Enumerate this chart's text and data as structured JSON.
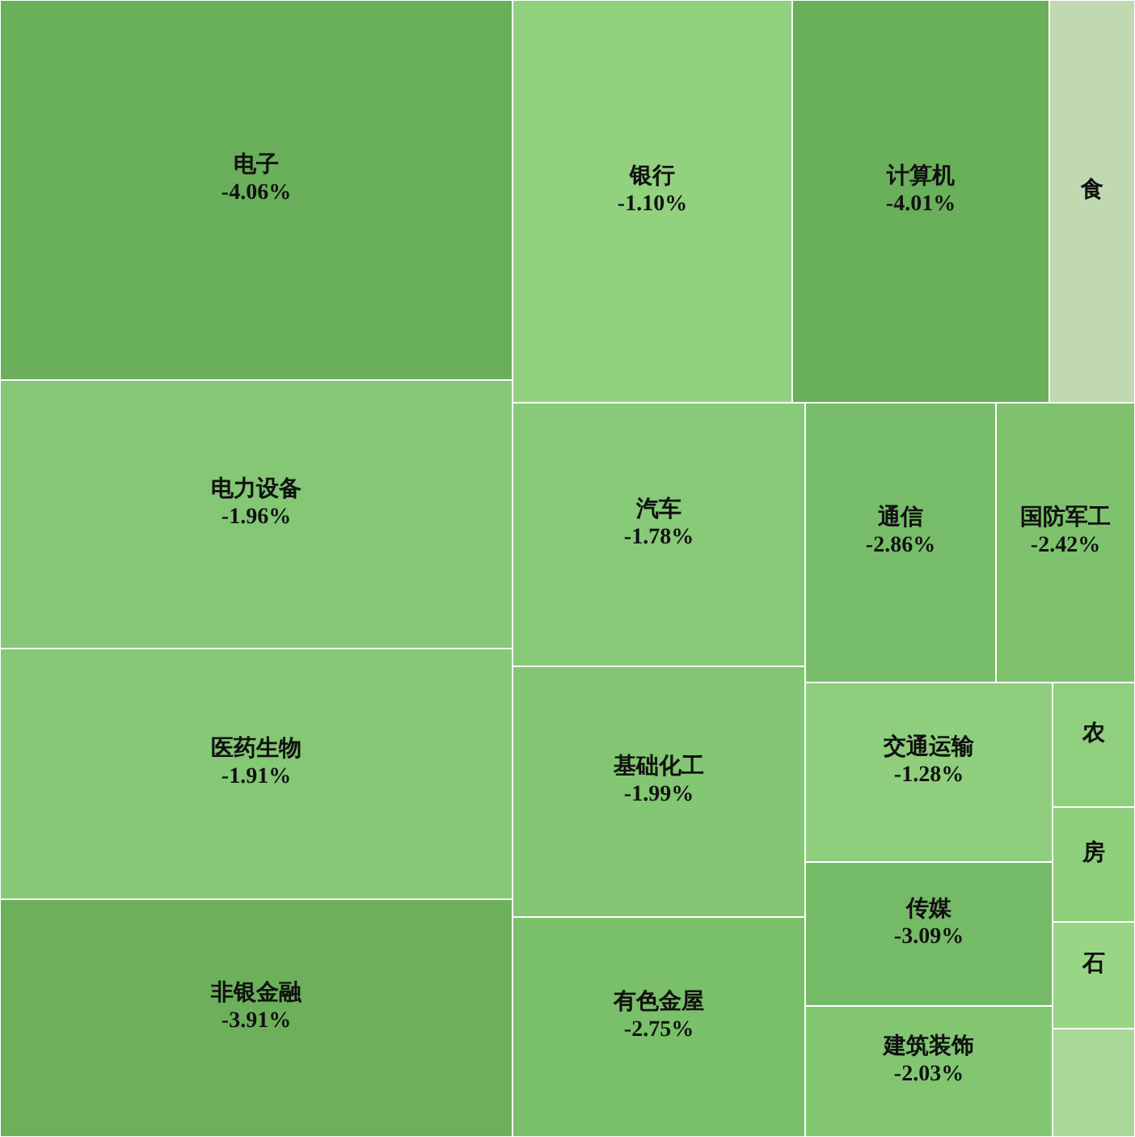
{
  "chart_data": {
    "type": "other",
    "categories": [
      "电子",
      "电力设备",
      "医药生物",
      "非银金融",
      "银行",
      "计算机",
      "食",
      "汽车",
      "基础化工",
      "有色金屋",
      "通信",
      "国防军工",
      "交通运输",
      "传媒",
      "建筑装饰",
      "农",
      "房",
      "石",
      null
    ],
    "values": [
      -4.06,
      -1.96,
      -1.91,
      -3.91,
      -1.1,
      -4.01,
      null,
      -1.78,
      -1.99,
      -2.75,
      -2.86,
      -2.42,
      -1.28,
      -3.09,
      -2.03,
      null,
      null,
      null,
      null
    ],
    "value_labels": [
      "-4.06%",
      "-1.96%",
      "-1.91%",
      "-3.91%",
      "-1.10%",
      "-4.01%",
      null,
      "-1.78%",
      "-1.99%",
      "-2.75%",
      "-2.86%",
      "-2.42%",
      "-1.28%",
      "-3.09%",
      "-2.03%",
      null,
      null,
      null,
      null
    ],
    "colors": [
      "#6aaf5a",
      "#84c774",
      "#85c875",
      "#6cb05c",
      "#92d27f",
      "#6aaf5a",
      "#c0d9b0",
      "#87ca77",
      "#83c673",
      "#7abf6a",
      "#78bd69",
      "#7fc26e",
      "#8ece7c",
      "#75ba66",
      "#82c672",
      "#8fcf7d",
      "#8ecf7c",
      "#98d585",
      "#a9d998"
    ]
  }
}
